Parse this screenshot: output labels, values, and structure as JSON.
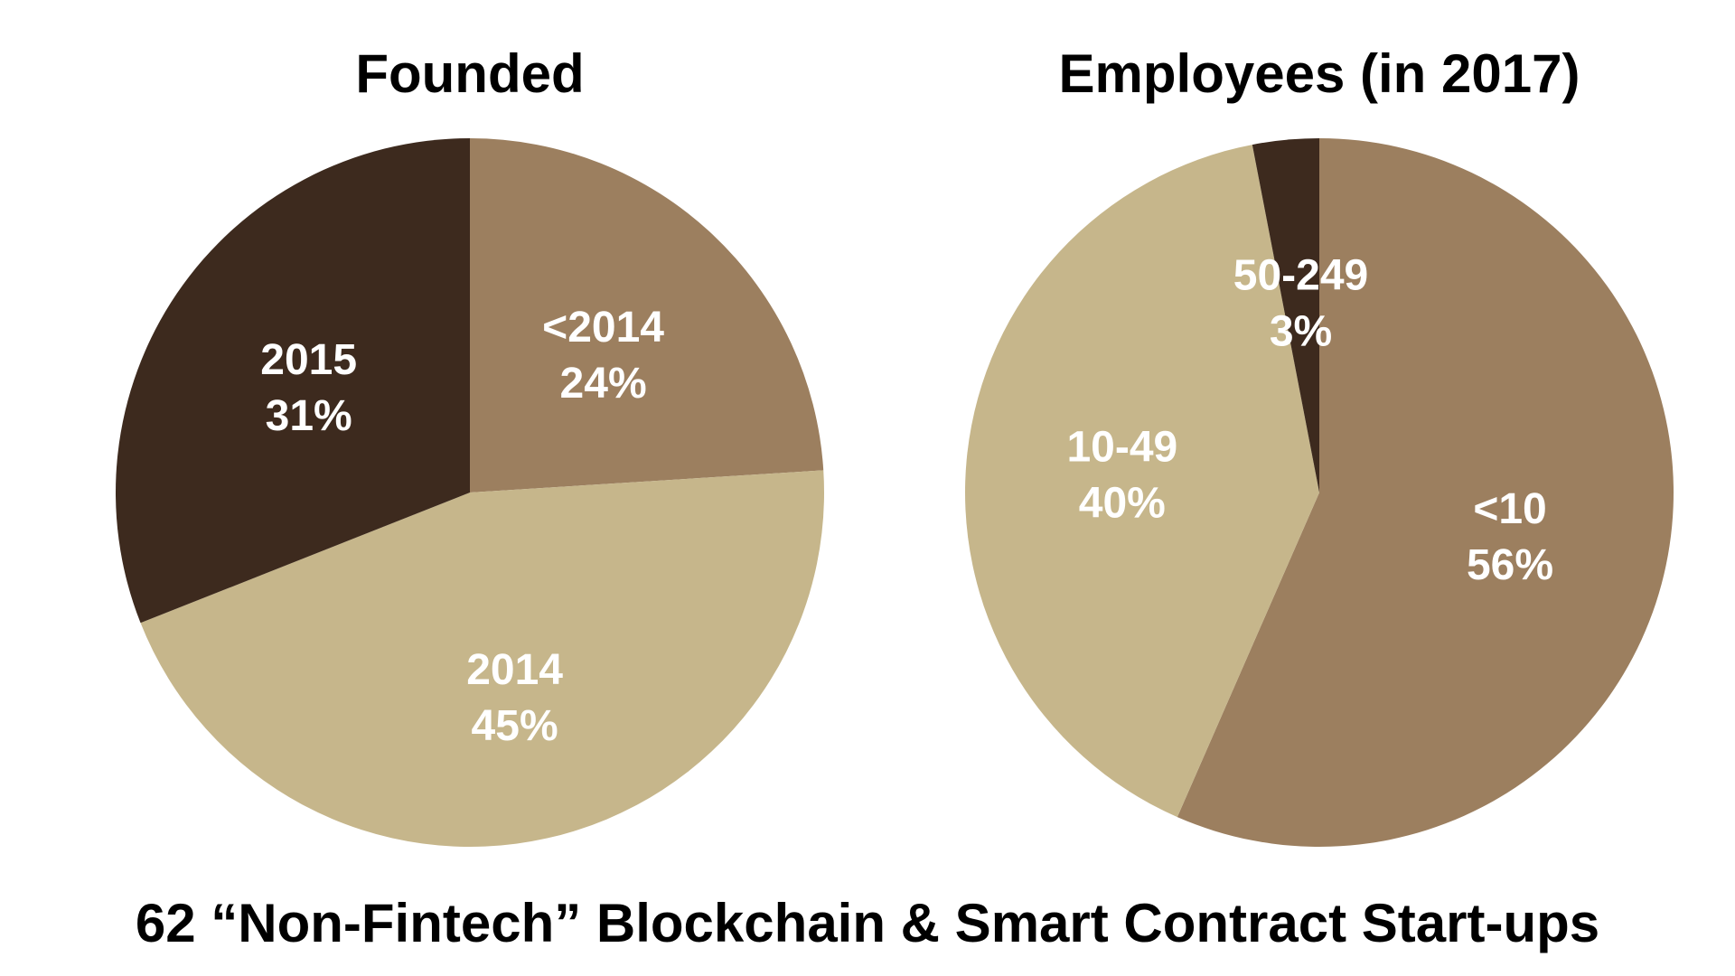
{
  "caption": "62 “Non-Fintech” Blockchain & Smart Contract Start-ups",
  "colors": {
    "dark": "#3d2a1e",
    "medium": "#9c7f5f",
    "light": "#c6b68b",
    "label": "#ffffff"
  },
  "chart_data": [
    {
      "type": "pie",
      "title": "Founded",
      "slices": [
        {
          "label": "<2014",
          "value": 24,
          "value_label": "24%",
          "color": "#9c7f5f"
        },
        {
          "label": "2014",
          "value": 45,
          "value_label": "45%",
          "color": "#c6b68b"
        },
        {
          "label": "2015",
          "value": 31,
          "value_label": "31%",
          "color": "#3d2a1e"
        }
      ]
    },
    {
      "type": "pie",
      "title": "Employees (in 2017)",
      "slices": [
        {
          "label": "<10",
          "value": 56,
          "value_label": "56%",
          "color": "#9c7f5f"
        },
        {
          "label": "10-49",
          "value": 40,
          "value_label": "40%",
          "color": "#c6b68b"
        },
        {
          "label": "50-249",
          "value": 3,
          "value_label": "3%",
          "color": "#3d2a1e"
        }
      ]
    }
  ]
}
